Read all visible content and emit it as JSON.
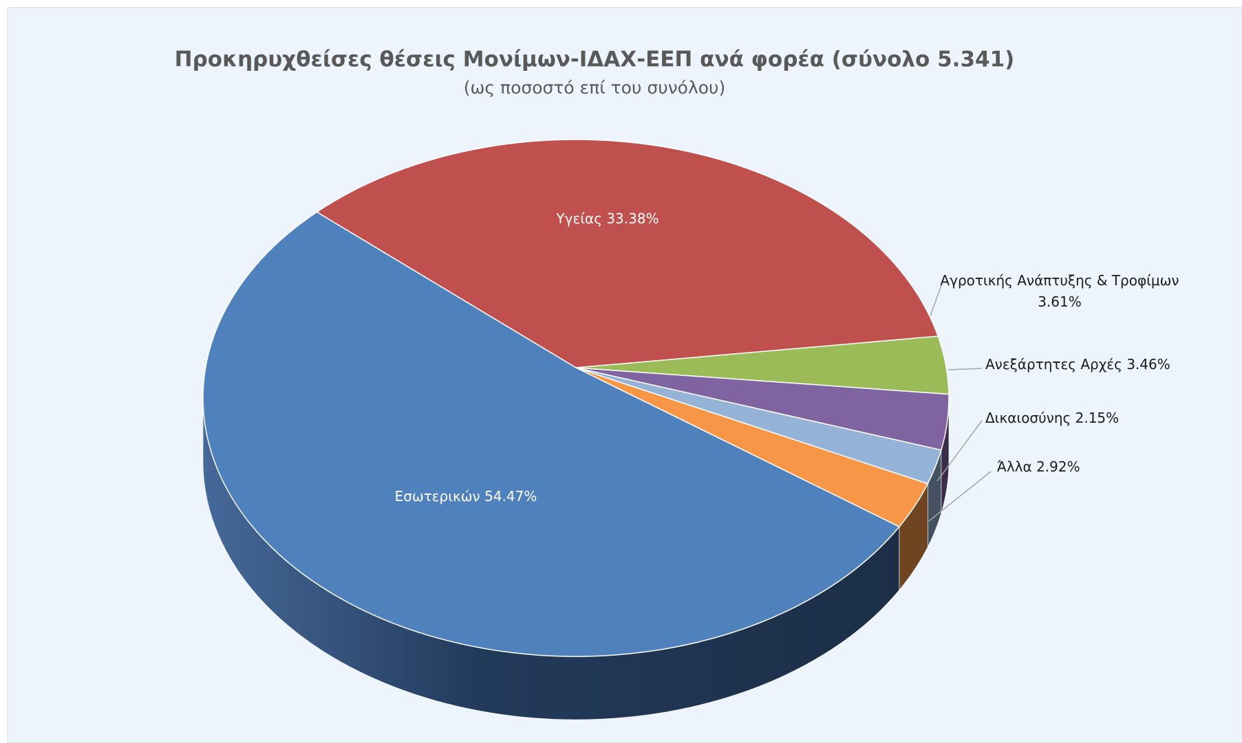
{
  "chart_data": {
    "type": "pie",
    "title": "Προκηρυχθείσες θέσεις Μονίμων-ΙΔΑΧ-ΕΕΠ ανά φορέα (σύνολο 5.341)",
    "subtitle": "(ως ποσοστό επί του συνόλου)",
    "categories": [
      "Υγείας",
      "Αγροτικής Ανάπτυξης & Τροφίμων",
      "Ανεξάρτητες Αρχές",
      "Δικαιοσύνης",
      "Άλλα",
      "Εσωτερικών"
    ],
    "values": [
      33.38,
      3.61,
      3.46,
      2.15,
      2.92,
      54.47
    ],
    "value_labels": [
      "33.38%",
      "3.61%",
      "3.46%",
      "2.15%",
      "2.92%",
      "54.47%"
    ],
    "colors": [
      "#c0504d",
      "#9bbb59",
      "#8064a2",
      "#95b3d7",
      "#f79646",
      "#4f81bd"
    ]
  }
}
